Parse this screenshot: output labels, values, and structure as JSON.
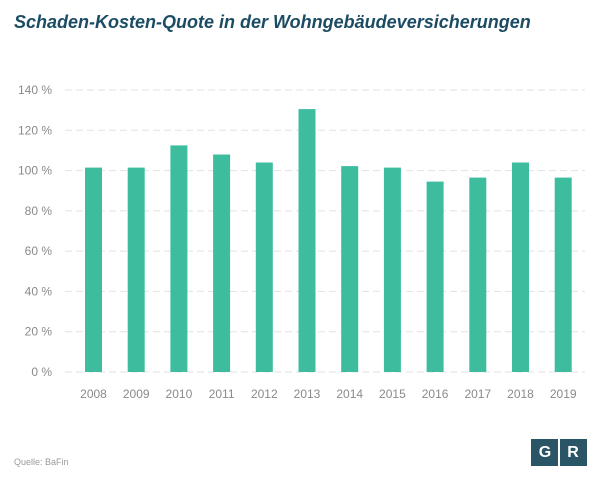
{
  "chart_data": {
    "type": "bar",
    "title": "Schaden-Kosten-Quote in der Wohngebäudeversicherungen",
    "categories": [
      "2008",
      "2009",
      "2010",
      "2011",
      "2012",
      "2013",
      "2014",
      "2015",
      "2016",
      "2017",
      "2018",
      "2019"
    ],
    "values": [
      101.5,
      101.5,
      112.5,
      108,
      104,
      130.5,
      102.2,
      101.5,
      94.5,
      96.5,
      104,
      96.5
    ],
    "y_ticks": [
      0,
      20,
      40,
      60,
      80,
      100,
      120,
      140
    ],
    "y_tick_suffix": " %",
    "ylim": [
      0,
      140
    ],
    "xlabel": "",
    "ylabel": "",
    "grid": true,
    "colors": {
      "bar": "#3dbd9e",
      "grid": "#e2e2e2",
      "title": "#1c4c63"
    }
  },
  "footer": {
    "source": "Quelle: BaFin",
    "logo_left": "G",
    "logo_right": "R"
  }
}
